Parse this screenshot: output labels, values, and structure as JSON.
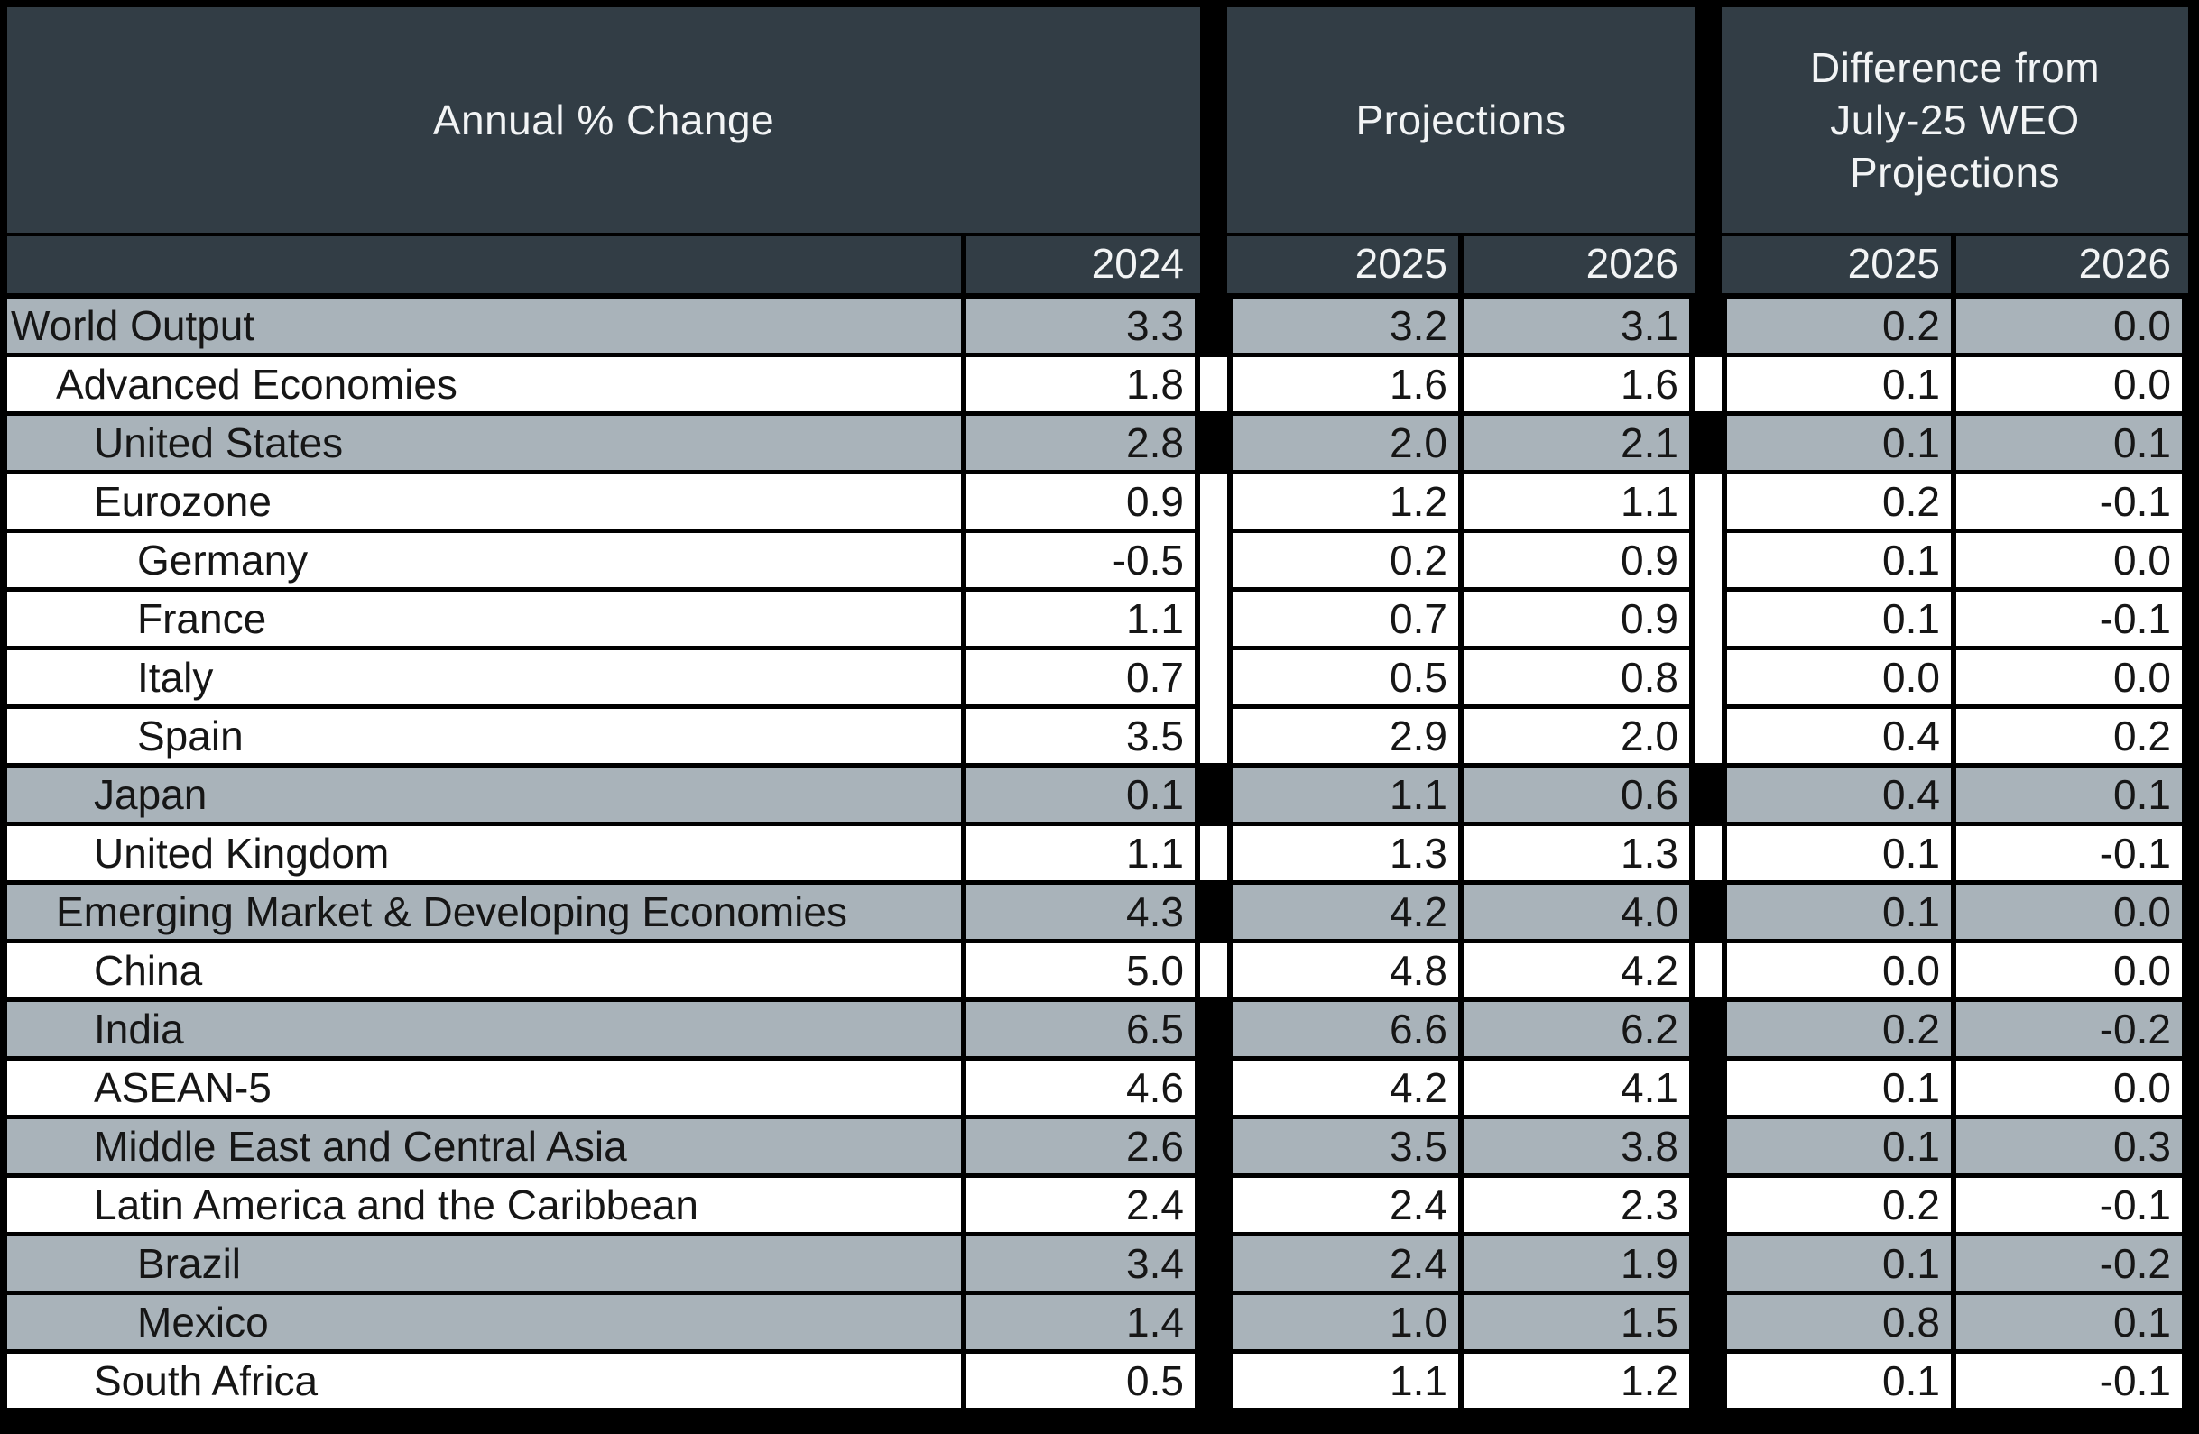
{
  "colors": {
    "background": "#000000",
    "header_bg": "#323d45",
    "header_text": "#f2f4f5",
    "shaded_row": "#a9b3ba",
    "unshaded_row": "#ffffff",
    "cell_text": "#161616"
  },
  "chart_data": {
    "type": "table",
    "column_groups": [
      {
        "label": "Annual % Change",
        "columns": [
          "2024"
        ]
      },
      {
        "label": "Projections",
        "columns": [
          "2025",
          "2026"
        ]
      },
      {
        "label": "Difference from July-25 WEO Projections",
        "label_lines": [
          "Difference from",
          "July-25 WEO",
          "Projections"
        ],
        "columns": [
          "2025",
          "2026"
        ]
      }
    ],
    "rows": [
      {
        "label": "World Output",
        "indent": 0,
        "shaded": true,
        "bridge": false,
        "values": [
          "3.3",
          "3.2",
          "3.1",
          "0.2",
          "0.0"
        ]
      },
      {
        "label": "Advanced Economies",
        "indent": 1,
        "shaded": false,
        "bridge": true,
        "values": [
          "1.8",
          "1.6",
          "1.6",
          "0.1",
          "0.0"
        ]
      },
      {
        "label": "United States",
        "indent": 2,
        "shaded": true,
        "bridge": false,
        "values": [
          "2.8",
          "2.0",
          "2.1",
          "0.1",
          "0.1"
        ]
      },
      {
        "label": "Eurozone",
        "indent": 2,
        "shaded": false,
        "bridge": true,
        "values": [
          "0.9",
          "1.2",
          "1.1",
          "0.2",
          "-0.1"
        ]
      },
      {
        "label": "Germany",
        "indent": 3,
        "shaded": false,
        "bridge": true,
        "values": [
          "-0.5",
          "0.2",
          "0.9",
          "0.1",
          "0.0"
        ]
      },
      {
        "label": "France",
        "indent": 3,
        "shaded": false,
        "bridge": true,
        "values": [
          "1.1",
          "0.7",
          "0.9",
          "0.1",
          "-0.1"
        ]
      },
      {
        "label": "Italy",
        "indent": 3,
        "shaded": false,
        "bridge": true,
        "values": [
          "0.7",
          "0.5",
          "0.8",
          "0.0",
          "0.0"
        ]
      },
      {
        "label": "Spain",
        "indent": 3,
        "shaded": false,
        "bridge": true,
        "values": [
          "3.5",
          "2.9",
          "2.0",
          "0.4",
          "0.2"
        ]
      },
      {
        "label": "Japan",
        "indent": 2,
        "shaded": true,
        "bridge": false,
        "values": [
          "0.1",
          "1.1",
          "0.6",
          "0.4",
          "0.1"
        ]
      },
      {
        "label": "United Kingdom",
        "indent": 2,
        "shaded": false,
        "bridge": true,
        "values": [
          "1.1",
          "1.3",
          "1.3",
          "0.1",
          "-0.1"
        ]
      },
      {
        "label": "Emerging Market & Developing Economies",
        "indent": 1,
        "shaded": true,
        "bridge": false,
        "values": [
          "4.3",
          "4.2",
          "4.0",
          "0.1",
          "0.0"
        ]
      },
      {
        "label": "China",
        "indent": 2,
        "shaded": false,
        "bridge": true,
        "values": [
          "5.0",
          "4.8",
          "4.2",
          "0.0",
          "0.0"
        ]
      },
      {
        "label": "India",
        "indent": 2,
        "shaded": true,
        "bridge": false,
        "values": [
          "6.5",
          "6.6",
          "6.2",
          "0.2",
          "-0.2"
        ]
      },
      {
        "label": "ASEAN-5",
        "indent": 2,
        "shaded": false,
        "bridge": false,
        "values": [
          "4.6",
          "4.2",
          "4.1",
          "0.1",
          "0.0"
        ]
      },
      {
        "label": "Middle East and Central Asia",
        "indent": 2,
        "shaded": true,
        "bridge": false,
        "values": [
          "2.6",
          "3.5",
          "3.8",
          "0.1",
          "0.3"
        ]
      },
      {
        "label": "Latin America and the Caribbean",
        "indent": 2,
        "shaded": false,
        "bridge": false,
        "values": [
          "2.4",
          "2.4",
          "2.3",
          "0.2",
          "-0.1"
        ]
      },
      {
        "label": "Brazil",
        "indent": 3,
        "shaded": true,
        "bridge": false,
        "values": [
          "3.4",
          "2.4",
          "1.9",
          "0.1",
          "-0.2"
        ]
      },
      {
        "label": "Mexico",
        "indent": 3,
        "shaded": true,
        "bridge": false,
        "values": [
          "1.4",
          "1.0",
          "1.5",
          "0.8",
          "0.1"
        ]
      },
      {
        "label": "South Africa",
        "indent": 2,
        "shaded": false,
        "bridge": false,
        "values": [
          "0.5",
          "1.1",
          "1.2",
          "0.1",
          "-0.1"
        ]
      }
    ]
  }
}
